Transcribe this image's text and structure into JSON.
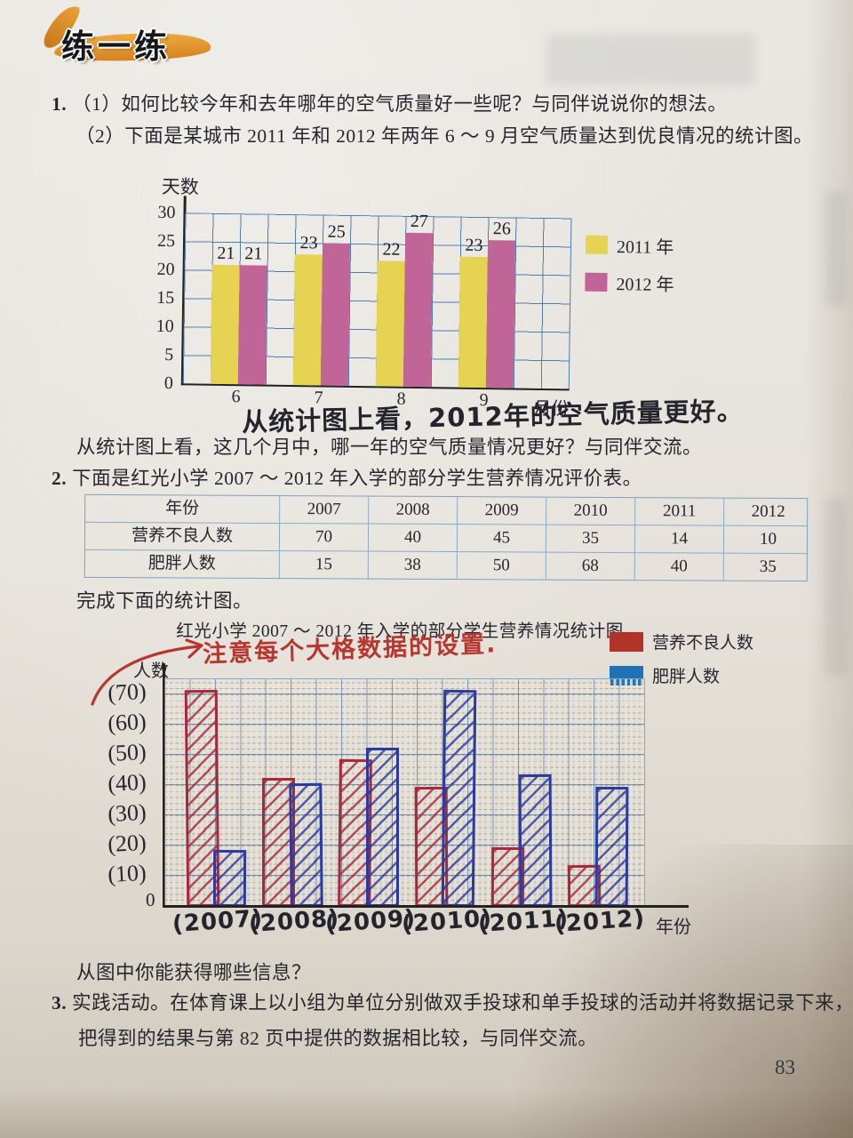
{
  "page": {
    "header_title": "练一练",
    "page_number": "83"
  },
  "q1": {
    "number": "1.",
    "part1_marker": "（1）",
    "part1_text": "如何比较今年和去年哪年的空气质量好一些呢？与同伴说说你的想法。",
    "part2_marker": "（2）",
    "part2_text": "下面是某城市 2011 年和 2012 年两年 6 ～ 9 月空气质量达到优良情况的统计图。",
    "handwritten_answer": "从统计图上看，2012年的空气质量更好。",
    "followup": "从统计图上看，这几个月中，哪一年的空气质量情况更好？与同伴交流。"
  },
  "chart1": {
    "ylabel": "天数",
    "xlabel": "月份",
    "yticks": [
      "30",
      "25",
      "20",
      "15",
      "10",
      "5",
      "0"
    ],
    "legend": [
      {
        "label": "2011 年",
        "color": "#e6d351"
      },
      {
        "label": "2012 年",
        "color": "#c16598"
      }
    ],
    "grid_color": "#4d7db3"
  },
  "q2": {
    "number": "2.",
    "text": "下面是红光小学 2007 ～ 2012 年入学的部分学生营养情况评价表。",
    "complete": "完成下面的统计图。",
    "question": "从图中你能获得哪些信息？"
  },
  "table": {
    "row_labels": [
      "年份",
      "营养不良人数",
      "肥胖人数"
    ],
    "years": [
      "2007",
      "2008",
      "2009",
      "2010",
      "2011",
      "2012"
    ],
    "rows": [
      [
        "70",
        "40",
        "45",
        "35",
        "14",
        "10"
      ],
      [
        "15",
        "38",
        "50",
        "68",
        "40",
        "35"
      ]
    ]
  },
  "chart2": {
    "title": "红光小学 2007 ～ 2012 年入学的部分学生营养情况统计图",
    "ylabel": "人数",
    "xlabel": "年份",
    "origin_label": "0",
    "annotation": "注意每个大格数据的设置.",
    "annotation_color": "#b5372f",
    "yticks_handwritten": [
      "(70)",
      "(60)",
      "(50)",
      "(40)",
      "(30)",
      "(20)",
      "(10)"
    ],
    "xticks_handwritten": [
      "(2007)",
      "(2008)",
      "(2009)",
      "(2010)",
      "(2011)",
      "(2012)"
    ],
    "legend": [
      {
        "label": "营养不良人数",
        "color": "#b03228"
      },
      {
        "label": "肥胖人数",
        "color": "#1d72b8"
      }
    ],
    "ink_red": "#a8283a",
    "ink_blue": "#2b3a9e",
    "drawn_values": [
      [
        70,
        17
      ],
      [
        41,
        39
      ],
      [
        47,
        51
      ],
      [
        38,
        70
      ],
      [
        18,
        42
      ],
      [
        12,
        38
      ]
    ]
  },
  "q3": {
    "number": "3.",
    "text": "实践活动。在体育课上以小组为单位分别做双手投球和单手投球的活动并将数据记录下来，把得到的结果与第 82 页中提供的数据相比较，与同伴交流。"
  },
  "chart_data": [
    {
      "type": "bar",
      "title": "某城市 2011 年和 2012 年 6～9 月空气质量达到优良情况统计图",
      "categories": [
        "6",
        "7",
        "8",
        "9"
      ],
      "series": [
        {
          "name": "2011 年",
          "values": [
            21,
            23,
            22,
            23
          ]
        },
        {
          "name": "2012 年",
          "values": [
            21,
            25,
            27,
            26
          ]
        }
      ],
      "xlabel": "月份",
      "ylabel": "天数",
      "ylim": [
        0,
        30
      ],
      "ytick_step": 5,
      "grid": true,
      "legend_position": "right"
    },
    {
      "type": "bar",
      "title": "红光小学 2007 ～ 2012 年入学的部分学生营养情况统计图",
      "categories": [
        "2007",
        "2008",
        "2009",
        "2010",
        "2011",
        "2012"
      ],
      "series": [
        {
          "name": "营养不良人数",
          "values": [
            70,
            40,
            45,
            35,
            14,
            10
          ]
        },
        {
          "name": "肥胖人数",
          "values": [
            15,
            38,
            50,
            68,
            40,
            35
          ]
        }
      ],
      "xlabel": "年份",
      "ylabel": "人数",
      "ylim": [
        0,
        75
      ],
      "ytick_step": 10,
      "grid": true,
      "legend_position": "top-right",
      "style": "hand-drawn hatched bars on graph paper"
    }
  ]
}
